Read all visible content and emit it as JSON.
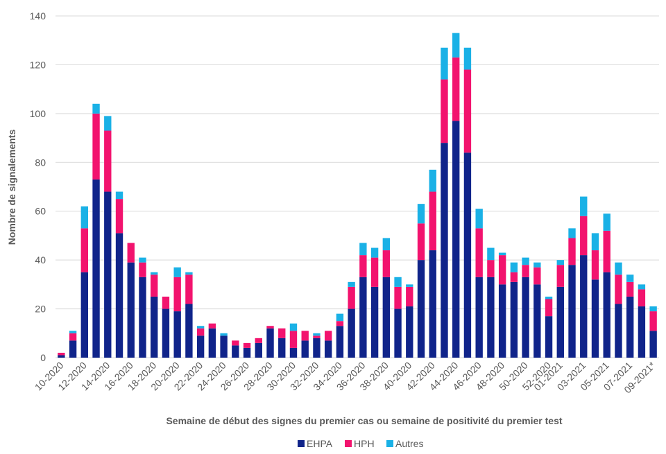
{
  "chart_data": {
    "type": "stacked_bar",
    "y_label": "Nombre de signalements",
    "x_label": "Semaine de début des signes du premier cas ou semaine de positivité du premier test",
    "categories": [
      "10-2020",
      null,
      "12-2020",
      null,
      "14-2020",
      null,
      "16-2020",
      null,
      "18-2020",
      null,
      "20-2020",
      null,
      "22-2020",
      null,
      "24-2020",
      null,
      "26-2020",
      null,
      "28-2020",
      null,
      "30-2020",
      null,
      "32-2020",
      null,
      "34-2020",
      null,
      "36-2020",
      null,
      "38-2020",
      null,
      "40-2020",
      null,
      "42-2020",
      null,
      "44-2020",
      null,
      "46-2020",
      null,
      "48-2020",
      null,
      "50-2020",
      null,
      "52-2020",
      "01-2021",
      null,
      "03-2021",
      null,
      "05-2021",
      null,
      "07-2021",
      null,
      "09-2021*"
    ],
    "series": [
      {
        "name": "EHPA",
        "color": "#10248a",
        "values": [
          1,
          7,
          35,
          73,
          68,
          51,
          39,
          33,
          25,
          20,
          19,
          22,
          9,
          12,
          9,
          5,
          4,
          6,
          12,
          8,
          4,
          7,
          8,
          7,
          13,
          20,
          33,
          29,
          33,
          20,
          21,
          40,
          44,
          88,
          97,
          84,
          33,
          33,
          30,
          31,
          33,
          30,
          17,
          29,
          38,
          42,
          32,
          35,
          22,
          25,
          21,
          11
        ]
      },
      {
        "name": "HPH",
        "color": "#f2136e",
        "values": [
          1,
          3,
          18,
          27,
          25,
          14,
          8,
          6,
          9,
          5,
          14,
          12,
          3,
          2,
          0,
          2,
          2,
          2,
          1,
          4,
          7,
          4,
          1,
          4,
          2,
          9,
          9,
          12,
          11,
          9,
          8,
          15,
          24,
          26,
          26,
          34,
          20,
          7,
          12,
          4,
          5,
          7,
          7,
          9,
          11,
          16,
          12,
          17,
          12,
          6,
          7,
          8
        ]
      },
      {
        "name": "Autres",
        "color": "#1ab1e6",
        "values": [
          0,
          1,
          9,
          4,
          6,
          3,
          0,
          2,
          1,
          0,
          4,
          1,
          1,
          0,
          1,
          0,
          0,
          0,
          0,
          0,
          3,
          0,
          1,
          0,
          3,
          2,
          5,
          4,
          5,
          4,
          1,
          8,
          9,
          13,
          10,
          9,
          8,
          5,
          1,
          4,
          3,
          2,
          1,
          2,
          4,
          8,
          7,
          7,
          5,
          3,
          2,
          2
        ]
      }
    ],
    "ylim": [
      0,
      140
    ],
    "yticks": [
      0,
      20,
      40,
      60,
      80,
      100,
      120,
      140
    ],
    "grid": true,
    "legend": "bottom"
  }
}
